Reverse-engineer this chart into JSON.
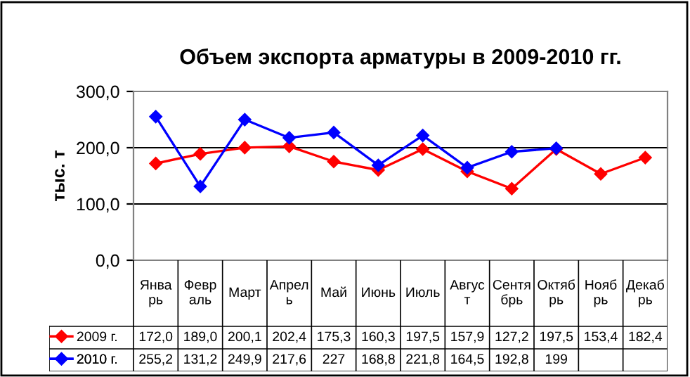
{
  "chart_data": {
    "type": "line",
    "title": "Объем экспорта арматуры в 2009-2010 гг.",
    "ylabel": "тыс. т",
    "categories": [
      "Янва\nрь",
      "Февр\nаль",
      "Март",
      "Апрел\nь",
      "Май",
      "Июнь",
      "Июль",
      "Авгус\nт",
      "Сентя\nбрь",
      "Октяб\nрь",
      "Нояб\nрь",
      "Декаб\nрь"
    ],
    "series": [
      {
        "name": "2009 г.",
        "color": "#ff0000",
        "values": [
          172.0,
          189.0,
          200.1,
          202.4,
          175.3,
          160.3,
          197.5,
          157.9,
          127.2,
          197.5,
          153.4,
          182.4
        ],
        "value_labels": [
          "172,0",
          "189,0",
          "200,1",
          "202,4",
          "175,3",
          "160,3",
          "197,5",
          "157,9",
          "127,2",
          "197,5",
          "153,4",
          "182,4"
        ]
      },
      {
        "name": "2010 г.",
        "color": "#0000ff",
        "values": [
          255.2,
          131.2,
          249.9,
          217.6,
          227,
          168.8,
          221.8,
          164.5,
          192.8,
          199,
          null,
          null
        ],
        "value_labels": [
          "255,2",
          "131,2",
          "249,9",
          "217,6",
          "227",
          "168,8",
          "221,8",
          "164,5",
          "192,8",
          "199",
          null,
          null
        ]
      }
    ],
    "ylim": [
      0,
      300
    ],
    "yticks": [
      {
        "value": 0,
        "label": "0,0"
      },
      {
        "value": 100,
        "label": "100,0"
      },
      {
        "value": 200,
        "label": "200,0"
      },
      {
        "value": 300,
        "label": "300,0"
      }
    ],
    "grid": "y",
    "marker": "diamond",
    "line_style": "solid",
    "legend": "bottom left"
  }
}
